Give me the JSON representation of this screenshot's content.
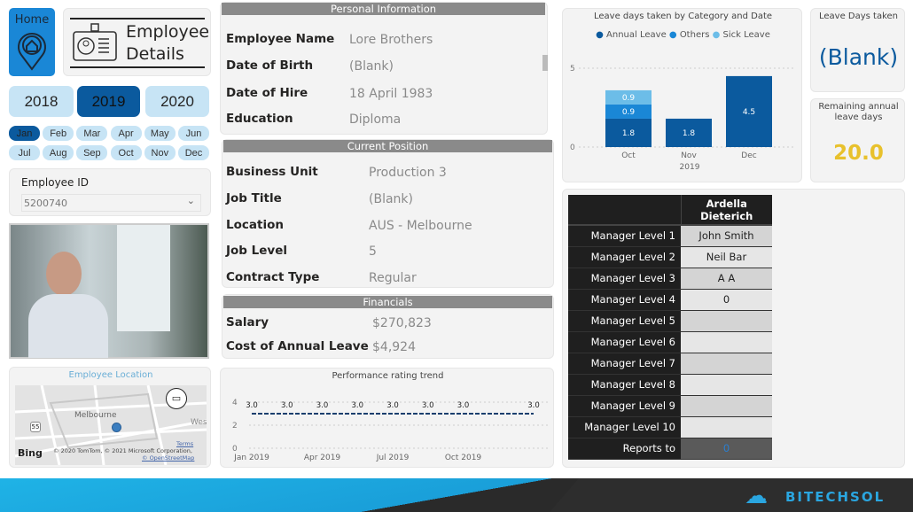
{
  "nav": {
    "home_label": "Home",
    "title": "Employee Details"
  },
  "years": [
    {
      "label": "2018",
      "selected": false
    },
    {
      "label": "2019",
      "selected": true
    },
    {
      "label": "2020",
      "selected": false
    }
  ],
  "months": [
    "Jan",
    "Feb",
    "Mar",
    "Apr",
    "May",
    "Jun",
    "Jul",
    "Aug",
    "Sep",
    "Oct",
    "Nov",
    "Dec"
  ],
  "selected_month": "Jan",
  "employee_id": {
    "label": "Employee ID",
    "value": "5200740"
  },
  "map": {
    "title": "Employee Location",
    "city": "Melbourne",
    "side_label": "Wes",
    "road": "55",
    "provider": "Bing",
    "copyright": "© 2020 TomTom, © 2021 Microsoft Corporation,",
    "terms": "Terms",
    "osm": "© OpenStreetMap"
  },
  "personal": {
    "header": "Personal Information",
    "rows": [
      {
        "label": "Employee Name",
        "value": "Lore Brothers"
      },
      {
        "label": "Date of Birth",
        "value": "(Blank)"
      },
      {
        "label": "Date of Hire",
        "value": "18 April 1983"
      },
      {
        "label": "Education",
        "value": "Diploma"
      }
    ]
  },
  "position": {
    "header": "Current Position",
    "rows": [
      {
        "label": "Business Unit",
        "value": "Production 3"
      },
      {
        "label": "Job Title",
        "value": "(Blank)"
      },
      {
        "label": "Location",
        "value": "AUS - Melbourne"
      },
      {
        "label": "Job Level",
        "value": "5"
      },
      {
        "label": "Contract Type",
        "value": "Regular"
      }
    ]
  },
  "financials": {
    "header": "Financials",
    "rows": [
      {
        "label": "Salary",
        "value": "$270,823"
      },
      {
        "label": "Cost of Annual Leave",
        "value": "$4,924"
      }
    ]
  },
  "kpis": {
    "leave_taken_label": "Leave Days taken",
    "leave_taken_value": "(Blank)",
    "remaining_label": "Remaining annual leave days",
    "remaining_value": "20.0",
    "remaining_color": "#e8c12c"
  },
  "managers": {
    "employee": "Ardella Dieterich",
    "rows": [
      {
        "label": "Manager Level 1",
        "value": "John Smith"
      },
      {
        "label": "Manager Level 2",
        "value": "Neil Bar"
      },
      {
        "label": "Manager Level 3",
        "value": "A A"
      },
      {
        "label": "Manager Level 4",
        "value": "0"
      },
      {
        "label": "Manager Level 5",
        "value": ""
      },
      {
        "label": "Manager Level 6",
        "value": ""
      },
      {
        "label": "Manager Level 7",
        "value": ""
      },
      {
        "label": "Manager Level 8",
        "value": ""
      },
      {
        "label": "Manager Level 9",
        "value": ""
      },
      {
        "label": "Manager Level 10",
        "value": ""
      },
      {
        "label": "Reports to",
        "value": "0"
      }
    ]
  },
  "brand": {
    "name": "BITECHSOL"
  },
  "chart_data": [
    {
      "type": "bar",
      "stacked": true,
      "title": "Leave days taken by Category and Date",
      "categories": [
        "Oct",
        "Nov",
        "Dec"
      ],
      "x_group_label": "2019",
      "ylim": [
        0,
        5
      ],
      "yticks": [
        0,
        5
      ],
      "legend_position": "top",
      "series": [
        {
          "name": "Annual Leave",
          "color": "#0b5a9e",
          "values": [
            1.8,
            1.8,
            4.5
          ]
        },
        {
          "name": "Others",
          "color": "#1a87d6",
          "values": [
            0.9,
            0,
            0
          ]
        },
        {
          "name": "Sick Leave",
          "color": "#6cbde8",
          "values": [
            0.9,
            0,
            0
          ]
        }
      ]
    },
    {
      "type": "line",
      "title": "Performance rating trend",
      "ylim": [
        0,
        4
      ],
      "yticks": [
        0,
        2,
        4
      ],
      "xticks": [
        {
          "month": 0,
          "label": "Jan 2019"
        },
        {
          "month": 3,
          "label": "Apr 2019"
        },
        {
          "month": 6,
          "label": "Jul 2019"
        },
        {
          "month": 9,
          "label": "Oct 2019"
        }
      ],
      "x": [
        0,
        1.5,
        3,
        4.5,
        6,
        7.5,
        9,
        12
      ],
      "values": [
        3.0,
        3.0,
        3.0,
        3.0,
        3.0,
        3.0,
        3.0,
        3.0
      ],
      "labels": [
        "3.0",
        "3.0",
        "3.0",
        "3.0",
        "3.0",
        "3.0",
        "3.0",
        "3.0"
      ]
    }
  ]
}
